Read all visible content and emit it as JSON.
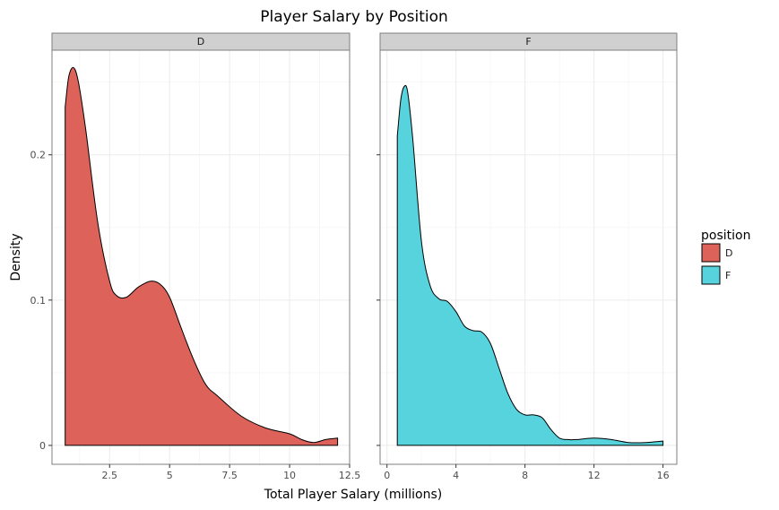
{
  "chart_data": {
    "type": "area",
    "title": "Player Salary by Position",
    "xlabel": "Total Player Salary (millions)",
    "ylabel": "Density",
    "ylim": [
      -0.013,
      0.272
    ],
    "yticks": [
      0,
      0.1,
      0.2
    ],
    "ytick_labels": [
      "0",
      "0.1",
      "0.2"
    ],
    "grid": true,
    "facet_by": "position",
    "legend": {
      "title": "position",
      "position": "right",
      "entries": [
        {
          "label": "D",
          "color": "#dc625a"
        },
        {
          "label": "F",
          "color": "#56d3dc"
        }
      ]
    },
    "panels": [
      {
        "strip": "D",
        "color": "#dc625a",
        "xlim": [
          0.1,
          12.5
        ],
        "xticks": [
          2.5,
          5,
          7.5,
          10,
          12.5
        ],
        "xtick_labels": [
          "2.5",
          "5",
          "7.5",
          "10",
          "12.5"
        ],
        "x": [
          0.65,
          0.8,
          1.0,
          1.2,
          1.5,
          2.0,
          2.5,
          2.8,
          3.2,
          3.7,
          4.2,
          4.6,
          5.0,
          5.5,
          6.0,
          6.5,
          7.0,
          8.0,
          9.0,
          10.0,
          10.5,
          11.0,
          11.5,
          12.0
        ],
        "y": [
          0.233,
          0.254,
          0.26,
          0.25,
          0.218,
          0.154,
          0.113,
          0.103,
          0.102,
          0.109,
          0.113,
          0.111,
          0.102,
          0.08,
          0.059,
          0.042,
          0.034,
          0.02,
          0.012,
          0.008,
          0.004,
          0.002,
          0.004,
          0.005
        ]
      },
      {
        "strip": "F",
        "color": "#56d3dc",
        "xlim": [
          -0.4,
          16.8
        ],
        "xticks": [
          0,
          4,
          8,
          12,
          16
        ],
        "xtick_labels": [
          "0",
          "4",
          "8",
          "12",
          "16"
        ],
        "x": [
          0.6,
          0.8,
          1.0,
          1.2,
          1.5,
          2.0,
          2.5,
          3.0,
          3.5,
          4.0,
          4.5,
          5.0,
          5.5,
          6.0,
          6.5,
          7.0,
          7.5,
          8.0,
          8.5,
          9.0,
          9.5,
          10.0,
          10.5,
          11.0,
          12.0,
          13.0,
          14.0,
          15.0,
          16.0
        ],
        "y": [
          0.213,
          0.238,
          0.247,
          0.243,
          0.21,
          0.14,
          0.11,
          0.101,
          0.099,
          0.092,
          0.082,
          0.079,
          0.078,
          0.07,
          0.053,
          0.036,
          0.025,
          0.021,
          0.021,
          0.019,
          0.011,
          0.005,
          0.004,
          0.004,
          0.005,
          0.004,
          0.002,
          0.002,
          0.003
        ]
      }
    ]
  }
}
